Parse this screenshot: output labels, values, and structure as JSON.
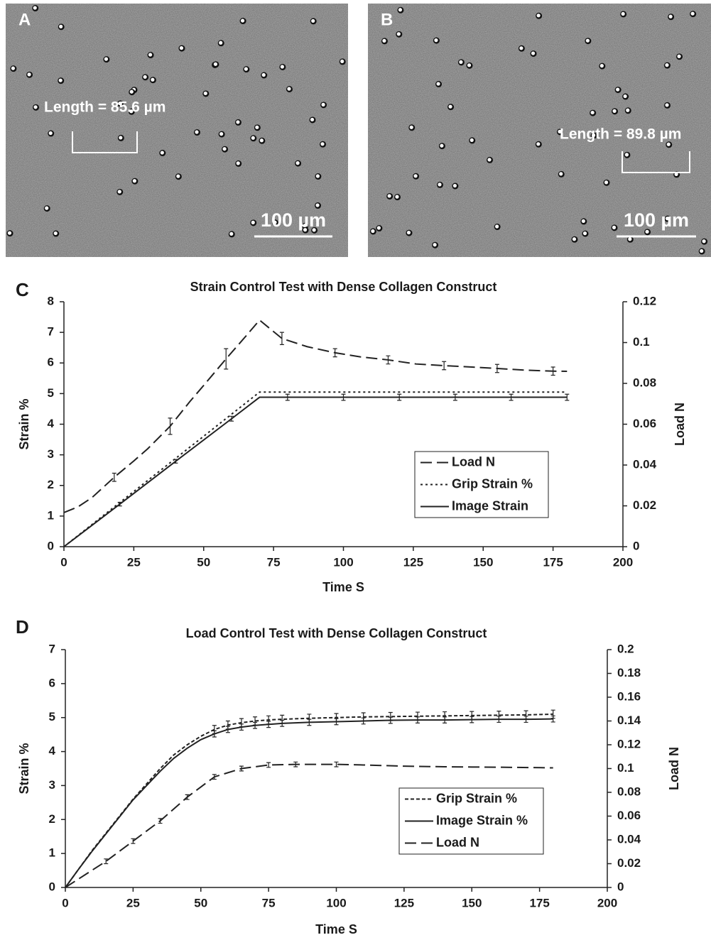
{
  "panels": [
    {
      "label": "A",
      "measurement": "Length = 85.6 µm",
      "scale_bar": "100 µm"
    },
    {
      "label": "B",
      "measurement": "Length = 89.8 µm",
      "scale_bar": "100 µm"
    }
  ],
  "chart_data": [
    {
      "type": "line",
      "panel_label": "C",
      "title": "Strain Control Test with Dense Collagen Construct",
      "x_label": "Time S",
      "y_label": "Strain %",
      "y2_label": "Load N",
      "xlim": [
        0,
        200
      ],
      "xticks": [
        0,
        25,
        50,
        75,
        100,
        125,
        150,
        175,
        200
      ],
      "ylim": [
        0,
        8
      ],
      "yticks": [
        0,
        1,
        2,
        3,
        4,
        5,
        6,
        7,
        8
      ],
      "y2lim": [
        0,
        0.12
      ],
      "y2ticks": [
        0,
        0.02,
        0.04,
        0.06,
        0.08,
        0.1,
        0.12
      ],
      "legend": "center right",
      "series": [
        {
          "name": "Load N",
          "axis": "y2",
          "color": "#222222",
          "dash": "long",
          "x": [
            0,
            5,
            10,
            18,
            25,
            30,
            38,
            45,
            50,
            58,
            65,
            70,
            78,
            87,
            97,
            106,
            116,
            126,
            136,
            146,
            155,
            165,
            175,
            180
          ],
          "values": [
            0.0167,
            0.0195,
            0.024,
            0.034,
            0.042,
            0.048,
            0.059,
            0.071,
            0.079,
            0.092,
            0.103,
            0.111,
            0.102,
            0.098,
            0.095,
            0.093,
            0.0915,
            0.0895,
            0.0887,
            0.088,
            0.0873,
            0.0865,
            0.086,
            0.0859
          ],
          "errors": [
            null,
            null,
            null,
            0.002,
            null,
            null,
            0.004,
            null,
            null,
            0.005,
            null,
            null,
            0.003,
            null,
            0.002,
            null,
            0.002,
            null,
            0.002,
            null,
            0.002,
            null,
            0.002,
            null
          ]
        },
        {
          "name": "Grip Strain %",
          "color": "#222222",
          "dash": "dotted",
          "x": [
            0,
            70,
            180
          ],
          "values": [
            0,
            5.05,
            5.05
          ]
        },
        {
          "name": "Image Strain",
          "color": "#222222",
          "dash": "solid",
          "x": [
            0,
            20,
            40,
            60,
            70,
            80,
            100,
            120,
            140,
            160,
            180
          ],
          "values": [
            0,
            1.39,
            2.79,
            4.18,
            4.88,
            4.88,
            4.88,
            4.88,
            4.88,
            4.88,
            4.88
          ],
          "errors": [
            null,
            0.06,
            0.06,
            0.08,
            null,
            0.1,
            0.1,
            0.1,
            0.1,
            0.1,
            0.1
          ]
        }
      ]
    },
    {
      "type": "line",
      "panel_label": "D",
      "title": "Load Control Test with Dense Collagen Construct",
      "x_label": "Time S",
      "y_label": "Strain %",
      "y2_label": "Load N",
      "xlim": [
        0,
        200
      ],
      "xticks": [
        0,
        25,
        50,
        75,
        100,
        125,
        150,
        175,
        200
      ],
      "ylim": [
        0,
        7
      ],
      "yticks": [
        0,
        1,
        2,
        3,
        4,
        5,
        6,
        7
      ],
      "y2lim": [
        0,
        0.2
      ],
      "y2ticks": [
        0,
        0.02,
        0.04,
        0.06,
        0.08,
        0.1,
        0.12,
        0.14,
        0.16,
        0.18,
        0.2
      ],
      "legend": "lower right",
      "series": [
        {
          "name": "Grip Strain %",
          "color": "#222222",
          "dash": "short",
          "x": [
            0,
            5,
            10,
            15,
            20,
            25,
            30,
            35,
            40,
            45,
            50,
            55,
            60,
            65,
            70,
            75,
            80,
            90,
            100,
            110,
            120,
            130,
            140,
            150,
            160,
            170,
            180
          ],
          "values": [
            0,
            0.55,
            1.1,
            1.6,
            2.1,
            2.6,
            3.05,
            3.5,
            3.9,
            4.2,
            4.45,
            4.65,
            4.78,
            4.85,
            4.9,
            4.93,
            4.95,
            4.98,
            5.0,
            5.02,
            5.03,
            5.04,
            5.05,
            5.06,
            5.07,
            5.08,
            5.1
          ],
          "errors": [
            null,
            null,
            null,
            null,
            null,
            null,
            null,
            null,
            null,
            null,
            null,
            0.12,
            0.12,
            0.12,
            0.12,
            0.12,
            0.12,
            0.12,
            0.12,
            0.12,
            0.12,
            0.12,
            0.12,
            0.12,
            0.12,
            0.12,
            0.12
          ]
        },
        {
          "name": "Image Strain %",
          "color": "#222222",
          "dash": "solid",
          "x": [
            0,
            5,
            10,
            15,
            20,
            25,
            30,
            35,
            40,
            45,
            50,
            55,
            60,
            65,
            70,
            75,
            80,
            90,
            100,
            110,
            120,
            130,
            140,
            150,
            160,
            170,
            180
          ],
          "values": [
            0,
            0.55,
            1.08,
            1.58,
            2.08,
            2.58,
            3.0,
            3.42,
            3.8,
            4.1,
            4.35,
            4.52,
            4.65,
            4.72,
            4.77,
            4.8,
            4.83,
            4.86,
            4.88,
            4.9,
            4.92,
            4.93,
            4.93,
            4.94,
            4.95,
            4.95,
            4.96
          ],
          "errors": [
            null,
            null,
            null,
            null,
            null,
            null,
            null,
            null,
            null,
            null,
            null,
            0.09,
            0.09,
            0.09,
            0.09,
            0.09,
            0.09,
            0.09,
            0.09,
            0.09,
            0.09,
            0.09,
            0.09,
            0.09,
            0.09,
            0.09,
            0.09
          ]
        },
        {
          "name": "Load N",
          "axis": "y2",
          "color": "#222222",
          "dash": "long",
          "x": [
            0,
            15,
            25,
            35,
            45,
            55,
            65,
            75,
            85,
            100,
            110,
            125,
            140,
            150,
            165,
            180
          ],
          "values": [
            0,
            0.022,
            0.039,
            0.056,
            0.076,
            0.093,
            0.1,
            0.103,
            0.1035,
            0.1035,
            0.103,
            0.102,
            0.1015,
            0.1013,
            0.101,
            0.1006
          ],
          "errors": [
            null,
            0.002,
            0.002,
            0.002,
            0.002,
            0.002,
            0.002,
            0.002,
            0.002,
            0.002,
            null,
            null,
            null,
            null,
            null,
            null
          ]
        }
      ]
    }
  ]
}
